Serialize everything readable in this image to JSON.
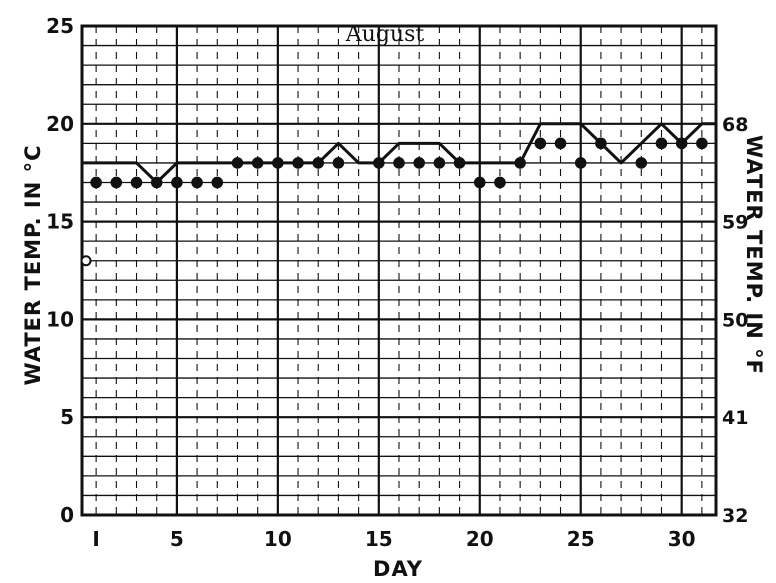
{
  "chart_data": {
    "type": "line",
    "title": "August",
    "xlabel": "DAY",
    "ylabel": "WATER TEMP. IN °C",
    "ylabel_right": "WATER TEMP. IN °F",
    "xlim": [
      0.3,
      31.7
    ],
    "ylim": [
      0,
      25
    ],
    "grid": true,
    "x_ticks": [
      {
        "value": 1,
        "label": "I"
      },
      {
        "value": 5,
        "label": "5"
      },
      {
        "value": 10,
        "label": "10"
      },
      {
        "value": 15,
        "label": "15"
      },
      {
        "value": 20,
        "label": "20"
      },
      {
        "value": 25,
        "label": "25"
      },
      {
        "value": 30,
        "label": "30"
      }
    ],
    "y_ticks_left": [
      {
        "value": 0,
        "label": "0"
      },
      {
        "value": 5,
        "label": "5"
      },
      {
        "value": 10,
        "label": "10"
      },
      {
        "value": 15,
        "label": "15"
      },
      {
        "value": 20,
        "label": "20"
      },
      {
        "value": 25,
        "label": "25"
      }
    ],
    "y_ticks_right": [
      {
        "value": 0,
        "label": "32"
      },
      {
        "value": 5,
        "label": "41"
      },
      {
        "value": 10,
        "label": "50"
      },
      {
        "value": 15,
        "label": "59"
      },
      {
        "value": 20,
        "label": "68"
      }
    ],
    "series": [
      {
        "style": "line",
        "x": [
          0.3,
          2.0,
          3.0,
          4.0,
          5.0,
          12.0,
          13.0,
          14.0,
          15.0,
          16.0,
          18.0,
          19.0,
          22.0,
          23.0,
          25.0,
          26.0,
          27.0,
          29.0,
          30.0,
          31.0,
          31.7
        ],
        "y": [
          18,
          18,
          18,
          17,
          18,
          18,
          19,
          18,
          18,
          19,
          19,
          18,
          18,
          20,
          20,
          19,
          18,
          20,
          19,
          20,
          20
        ]
      },
      {
        "style": "filled-dots",
        "x": [
          1,
          2,
          3,
          4,
          5,
          6,
          7,
          8,
          9,
          10,
          11,
          12,
          13,
          15,
          16,
          17,
          18,
          19,
          20,
          21,
          22,
          23,
          24,
          25,
          26,
          28,
          29,
          30,
          31
        ],
        "y": [
          17,
          17,
          17,
          17,
          17,
          17,
          17,
          18,
          18,
          18,
          18,
          18,
          18,
          18,
          18,
          18,
          18,
          18,
          17,
          17,
          18,
          19,
          19,
          18,
          19,
          18,
          19,
          19,
          19
        ]
      },
      {
        "style": "open-dots",
        "x": [
          0.5
        ],
        "y": [
          13
        ]
      }
    ]
  }
}
